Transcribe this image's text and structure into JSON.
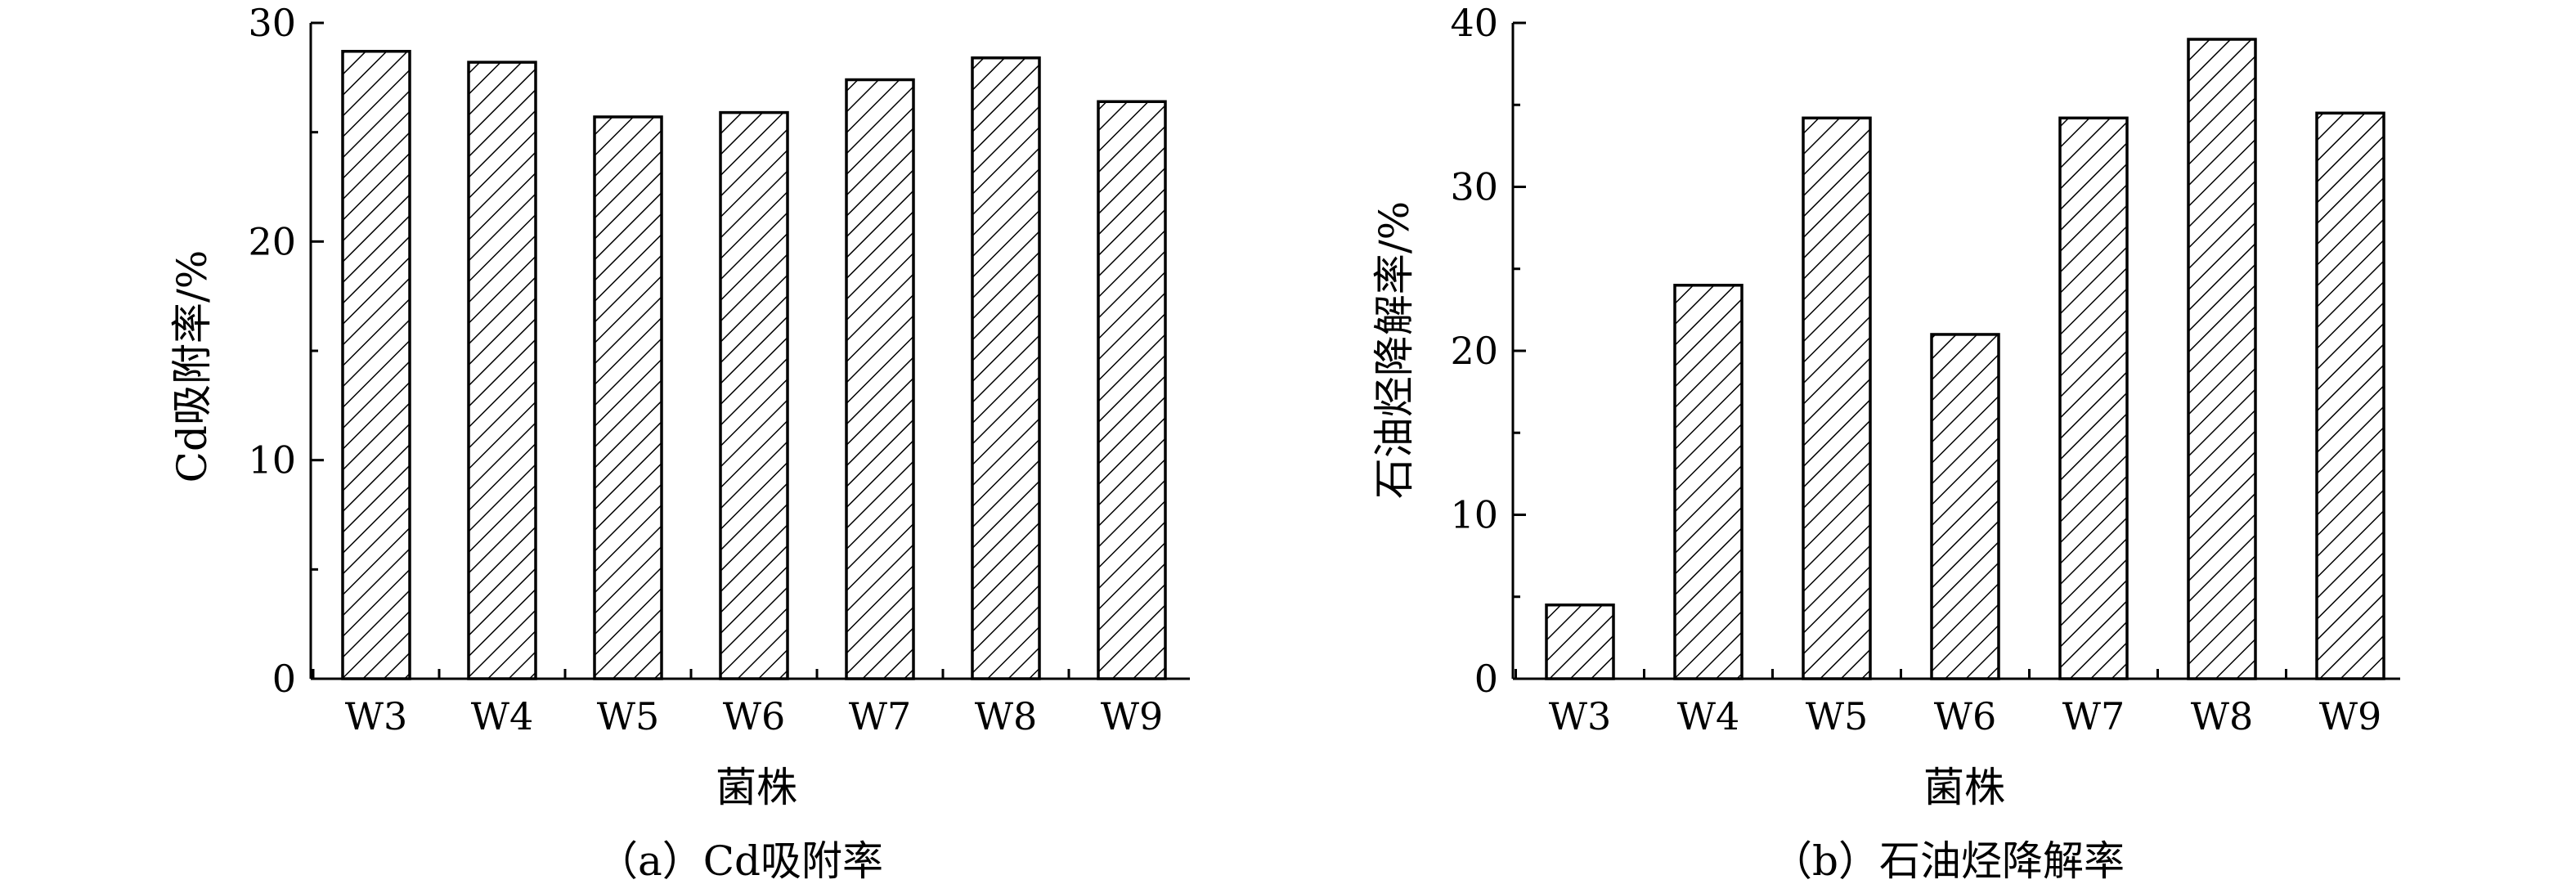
{
  "chart_data": [
    {
      "type": "bar",
      "caption": "（a）Cd吸附率",
      "categories": [
        "W3",
        "W4",
        "W5",
        "W6",
        "W7",
        "W8",
        "W9"
      ],
      "values": [
        28.7,
        28.2,
        25.7,
        25.9,
        27.4,
        28.4,
        26.4
      ],
      "xlabel": "菌株",
      "ylabel": "Cd吸附率/%",
      "ylim": [
        0,
        30
      ],
      "yticks": [
        0,
        10,
        20,
        30
      ],
      "grid": false,
      "bar_fill": "diagonal hatch"
    },
    {
      "type": "bar",
      "caption": "（b）石油烃降解率",
      "categories": [
        "W3",
        "W4",
        "W5",
        "W6",
        "W7",
        "W8",
        "W9"
      ],
      "values": [
        4.5,
        24.0,
        34.2,
        21.0,
        34.2,
        39.0,
        34.5
      ],
      "xlabel": "菌株",
      "ylabel": "石油烃降解率/%",
      "ylim": [
        0,
        40
      ],
      "yticks": [
        0,
        10,
        20,
        30,
        40
      ],
      "grid": false,
      "bar_fill": "diagonal hatch"
    }
  ]
}
